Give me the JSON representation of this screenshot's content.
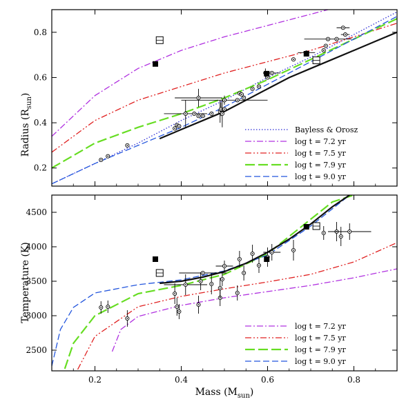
{
  "chart_data": {
    "type": "line",
    "shared_x": {
      "xlabel": "Mass (M",
      "xlabel_sub": "sun",
      "xlabel_close": ")",
      "xlim": [
        0.1,
        0.9
      ],
      "xticks": [
        0.2,
        0.4,
        0.6,
        0.8
      ],
      "xtick_labels": [
        "0.2",
        "0.4",
        "0.6",
        "0.8"
      ]
    },
    "panels": [
      {
        "id": "radius",
        "ylabel": "Radius (R",
        "ylabel_sub": "sun",
        "ylabel_close": ")",
        "ylim": [
          0.12,
          0.9
        ],
        "yticks": [
          0.2,
          0.4,
          0.6,
          0.8
        ],
        "ytick_labels": [
          "0.2",
          "0.4",
          "0.6",
          "0.8"
        ],
        "legend_position": "bottom-right",
        "series": [
          {
            "name": "Bayless & Orosz",
            "color": "#2b2bd6",
            "dash": "1.5,2.5",
            "width": 1.3,
            "x": [
              0.1,
              0.2,
              0.3,
              0.4,
              0.5,
              0.6,
              0.7,
              0.8,
              0.9
            ],
            "y": [
              0.13,
              0.22,
              0.31,
              0.41,
              0.5,
              0.6,
              0.69,
              0.79,
              0.89
            ]
          },
          {
            "name": "log t = 7.2 yr",
            "color": "#b030e0",
            "dash": "9,3,2,3",
            "width": 1.3,
            "x": [
              0.1,
              0.2,
              0.3,
              0.4,
              0.5,
              0.6,
              0.7,
              0.74
            ],
            "y": [
              0.34,
              0.52,
              0.64,
              0.72,
              0.78,
              0.83,
              0.88,
              0.9
            ]
          },
          {
            "name": "log t = 7.5 yr",
            "color": "#e02020",
            "dash": "9,3,2,3,2,3",
            "width": 1.3,
            "x": [
              0.1,
              0.2,
              0.3,
              0.4,
              0.5,
              0.6,
              0.7,
              0.8,
              0.9
            ],
            "y": [
              0.27,
              0.41,
              0.5,
              0.56,
              0.62,
              0.67,
              0.72,
              0.78,
              0.84
            ]
          },
          {
            "name": "log t = 7.9 yr",
            "color": "#66dd22",
            "dash": "14,5",
            "width": 2.2,
            "x": [
              0.1,
              0.2,
              0.3,
              0.4,
              0.5,
              0.6,
              0.7,
              0.8,
              0.9
            ],
            "y": [
              0.2,
              0.31,
              0.38,
              0.44,
              0.51,
              0.59,
              0.68,
              0.77,
              0.86
            ]
          },
          {
            "name": "log t = 9.0 yr",
            "color": "#2255dd",
            "dash": "9,4",
            "width": 1.3,
            "x": [
              0.1,
              0.2,
              0.3,
              0.4,
              0.5,
              0.6,
              0.7,
              0.8,
              0.9
            ],
            "y": [
              0.13,
              0.22,
              0.3,
              0.38,
              0.47,
              0.57,
              0.67,
              0.77,
              0.87
            ]
          },
          {
            "name": "",
            "color": "#111111",
            "dash": "",
            "width": 2.2,
            "x": [
              0.35,
              0.4,
              0.45,
              0.5,
              0.55,
              0.6,
              0.65,
              0.7,
              0.75,
              0.8,
              0.85,
              0.9
            ],
            "y": [
              0.33,
              0.37,
              0.41,
              0.45,
              0.5,
              0.55,
              0.6,
              0.64,
              0.68,
              0.72,
              0.76,
              0.8
            ]
          }
        ],
        "points": [
          {
            "x": 0.214,
            "y": 0.236
          },
          {
            "x": 0.23,
            "y": 0.252
          },
          {
            "x": 0.275,
            "y": 0.3
          },
          {
            "x": 0.385,
            "y": 0.375
          },
          {
            "x": 0.39,
            "y": 0.39
          },
          {
            "x": 0.395,
            "y": 0.385
          },
          {
            "x": 0.41,
            "y": 0.44,
            "xerr": 0.05,
            "yerr": 0.06
          },
          {
            "x": 0.43,
            "y": 0.44
          },
          {
            "x": 0.44,
            "y": 0.43
          },
          {
            "x": 0.44,
            "y": 0.51,
            "xerr": 0.055,
            "yerr": 0.04
          },
          {
            "x": 0.45,
            "y": 0.43
          },
          {
            "x": 0.47,
            "y": 0.44
          },
          {
            "x": 0.49,
            "y": 0.45,
            "yerr": 0.05
          },
          {
            "x": 0.492,
            "y": 0.46,
            "yerr": 0.03
          },
          {
            "x": 0.495,
            "y": 0.44,
            "yerr": 0.06
          },
          {
            "x": 0.5,
            "y": 0.46
          },
          {
            "x": 0.5,
            "y": 0.5,
            "xerr": 0.1,
            "yerr": 0.02
          },
          {
            "x": 0.53,
            "y": 0.5
          },
          {
            "x": 0.535,
            "y": 0.53
          },
          {
            "x": 0.54,
            "y": 0.525
          },
          {
            "x": 0.545,
            "y": 0.51
          },
          {
            "x": 0.565,
            "y": 0.55
          },
          {
            "x": 0.58,
            "y": 0.56
          },
          {
            "x": 0.595,
            "y": 0.62,
            "yerr": 0.02
          },
          {
            "x": 0.6,
            "y": 0.6
          },
          {
            "x": 0.61,
            "y": 0.62,
            "xerr": 0.02
          },
          {
            "x": 0.66,
            "y": 0.68
          },
          {
            "x": 0.69,
            "y": 0.71,
            "xerr": 0.02
          },
          {
            "x": 0.73,
            "y": 0.72
          },
          {
            "x": 0.735,
            "y": 0.74
          },
          {
            "x": 0.74,
            "y": 0.77,
            "xerr": 0.055
          },
          {
            "x": 0.76,
            "y": 0.77
          },
          {
            "x": 0.775,
            "y": 0.82,
            "xerr": 0.015
          },
          {
            "x": 0.78,
            "y": 0.79,
            "xerr": 0.01
          }
        ],
        "filled_squares": [
          {
            "x": 0.34,
            "y": 0.66
          },
          {
            "x": 0.598,
            "y": 0.617
          },
          {
            "x": 0.69,
            "y": 0.705
          }
        ],
        "open_squares": [
          {
            "x": 0.35,
            "y": 0.765
          },
          {
            "x": 0.713,
            "y": 0.676
          }
        ]
      },
      {
        "id": "temperature",
        "ylabel": "Temperature (K)",
        "ylim": [
          2200,
          4750
        ],
        "yticks": [
          2500,
          3000,
          3500,
          4000,
          4500
        ],
        "ytick_labels": [
          "2500",
          "3000",
          "3500",
          "4000",
          "4500"
        ],
        "legend_position": "bottom-right",
        "series": [
          {
            "name": "log t = 7.2 yr",
            "color": "#b030e0",
            "dash": "9,3,2,3",
            "width": 1.3,
            "x": [
              0.24,
              0.26,
              0.3,
              0.4,
              0.5,
              0.6,
              0.7,
              0.8,
              0.9
            ],
            "y": [
              2480,
              2800,
              2990,
              3150,
              3260,
              3350,
              3440,
              3550,
              3680
            ]
          },
          {
            "name": "log t = 7.5 yr",
            "color": "#e02020",
            "dash": "9,3,2,3,2,3",
            "width": 1.3,
            "x": [
              0.16,
              0.2,
              0.3,
              0.4,
              0.5,
              0.6,
              0.7,
              0.8,
              0.9
            ],
            "y": [
              2220,
              2700,
              3130,
              3280,
              3390,
              3490,
              3600,
              3780,
              4060
            ]
          },
          {
            "name": "log t = 7.9 yr",
            "color": "#66dd22",
            "dash": "14,5",
            "width": 2.2,
            "x": [
              0.13,
              0.15,
              0.2,
              0.3,
              0.4,
              0.5,
              0.6,
              0.7,
              0.75,
              0.8
            ],
            "y": [
              2230,
              2600,
              3000,
              3320,
              3440,
              3600,
              3900,
              4400,
              4650,
              4750
            ]
          },
          {
            "name": "log t = 9.0 yr",
            "color": "#2255dd",
            "dash": "9,4",
            "width": 1.3,
            "x": [
              0.1,
              0.12,
              0.15,
              0.2,
              0.3,
              0.4,
              0.5,
              0.6,
              0.7,
              0.79
            ],
            "y": [
              2270,
              2800,
              3120,
              3330,
              3450,
              3520,
              3650,
              3880,
              4300,
              4750
            ]
          },
          {
            "name": "",
            "color": "#111111",
            "dash": "",
            "width": 2.2,
            "x": [
              0.35,
              0.4,
              0.45,
              0.5,
              0.55,
              0.6,
              0.65,
              0.7,
              0.75,
              0.79
            ],
            "y": [
              3470,
              3500,
              3560,
              3640,
              3760,
              3920,
              4110,
              4330,
              4580,
              4750
            ]
          }
        ],
        "points": [
          {
            "x": 0.214,
            "y": 3120,
            "yerr": 90
          },
          {
            "x": 0.23,
            "y": 3130,
            "yerr": 90
          },
          {
            "x": 0.275,
            "y": 2960,
            "yerr": 120
          },
          {
            "x": 0.385,
            "y": 3320,
            "yerr": 150
          },
          {
            "x": 0.39,
            "y": 3130,
            "yerr": 130
          },
          {
            "x": 0.395,
            "y": 3060,
            "yerr": 110
          },
          {
            "x": 0.41,
            "y": 3450,
            "xerr": 0.05,
            "yerr": 150
          },
          {
            "x": 0.44,
            "y": 3160,
            "yerr": 130
          },
          {
            "x": 0.445,
            "y": 3500,
            "yerr": 130
          },
          {
            "x": 0.45,
            "y": 3620,
            "xerr": 0.055
          },
          {
            "x": 0.47,
            "y": 3460,
            "yerr": 150
          },
          {
            "x": 0.49,
            "y": 3260,
            "yerr": 120
          },
          {
            "x": 0.49,
            "y": 3400,
            "yerr": 150
          },
          {
            "x": 0.495,
            "y": 3530,
            "yerr": 100
          },
          {
            "x": 0.5,
            "y": 3720,
            "xerr": 0.02,
            "yerr": 80
          },
          {
            "x": 0.53,
            "y": 3330,
            "yerr": 110
          },
          {
            "x": 0.535,
            "y": 3820,
            "yerr": 120
          },
          {
            "x": 0.545,
            "y": 3620,
            "yerr": 110
          },
          {
            "x": 0.565,
            "y": 3900,
            "yerr": 130
          },
          {
            "x": 0.58,
            "y": 3730,
            "yerr": 110
          },
          {
            "x": 0.6,
            "y": 3850,
            "yerr": 140
          },
          {
            "x": 0.61,
            "y": 3920,
            "xerr": 0.02,
            "yerr": 120
          },
          {
            "x": 0.66,
            "y": 3950,
            "yerr": 150
          },
          {
            "x": 0.73,
            "y": 4200,
            "yerr": 100
          },
          {
            "x": 0.76,
            "y": 4220,
            "yerr": 140
          },
          {
            "x": 0.77,
            "y": 4150,
            "yerr": 140
          },
          {
            "x": 0.79,
            "y": 4220,
            "xerr": 0.05,
            "yerr": 120
          }
        ],
        "filled_squares": [
          {
            "x": 0.34,
            "y": 3820
          },
          {
            "x": 0.598,
            "y": 3820
          },
          {
            "x": 0.69,
            "y": 4290
          }
        ],
        "open_squares": [
          {
            "x": 0.35,
            "y": 3620
          },
          {
            "x": 0.713,
            "y": 4300
          }
        ]
      }
    ]
  }
}
